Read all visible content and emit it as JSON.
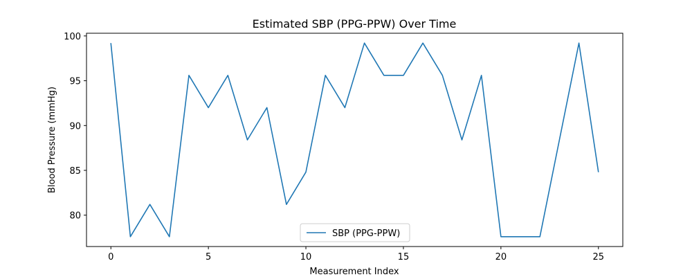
{
  "chart_data": {
    "type": "line",
    "title": "Estimated SBP (PPG-PPW) Over Time",
    "xlabel": "Measurement Index",
    "ylabel": "Blood Pressure (mmHg)",
    "xlim": [
      -1.25,
      26.25
    ],
    "ylim": [
      76.5,
      100.3
    ],
    "xticks": [
      0,
      5,
      10,
      15,
      20,
      25
    ],
    "yticks": [
      80,
      85,
      90,
      95,
      100
    ],
    "grid": false,
    "legend_position": "bottom-center",
    "series": [
      {
        "name": "SBP (PPG-PPW)",
        "color": "#1f77b4",
        "x": [
          0,
          1,
          2,
          3,
          4,
          5,
          6,
          7,
          8,
          9,
          10,
          11,
          12,
          13,
          14,
          15,
          16,
          17,
          18,
          19,
          20,
          21,
          22,
          23,
          24,
          25
        ],
        "y": [
          99.2,
          77.6,
          81.2,
          77.6,
          95.6,
          92.0,
          95.6,
          88.4,
          92.0,
          81.2,
          84.8,
          95.6,
          92.0,
          99.2,
          95.6,
          95.6,
          99.2,
          95.6,
          88.4,
          95.6,
          77.6,
          77.6,
          77.6,
          88.4,
          99.2,
          84.8
        ]
      }
    ]
  }
}
